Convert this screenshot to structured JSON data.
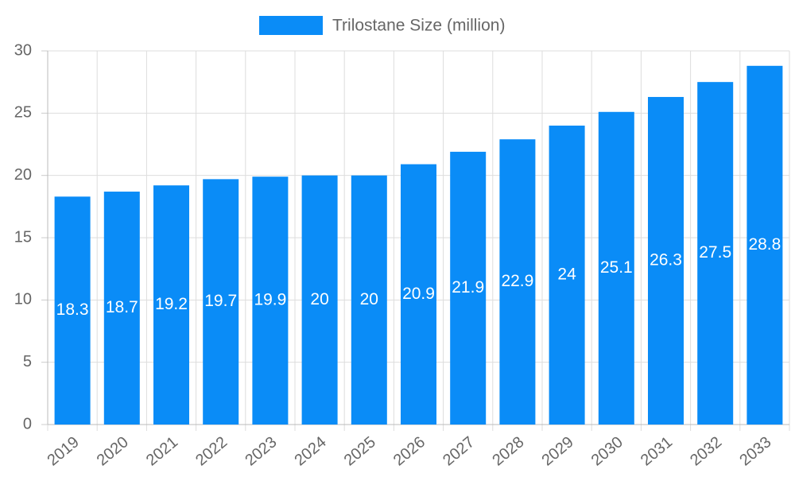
{
  "chart_data": {
    "type": "bar",
    "categories": [
      "2019",
      "2020",
      "2021",
      "2022",
      "2023",
      "2024",
      "2025",
      "2026",
      "2027",
      "2028",
      "2029",
      "2030",
      "2031",
      "2032",
      "2033"
    ],
    "series": [
      {
        "name": "Trilostane Size (million)",
        "color": "#0a8cf7",
        "values": [
          18.3,
          18.7,
          19.2,
          19.7,
          19.9,
          20,
          20,
          20.9,
          21.9,
          22.9,
          24,
          25.1,
          26.3,
          27.5,
          28.8
        ]
      }
    ],
    "ylim": [
      0,
      30
    ],
    "yticks": [
      0,
      5,
      10,
      15,
      20,
      25,
      30
    ],
    "grid": true,
    "legend": "top"
  }
}
